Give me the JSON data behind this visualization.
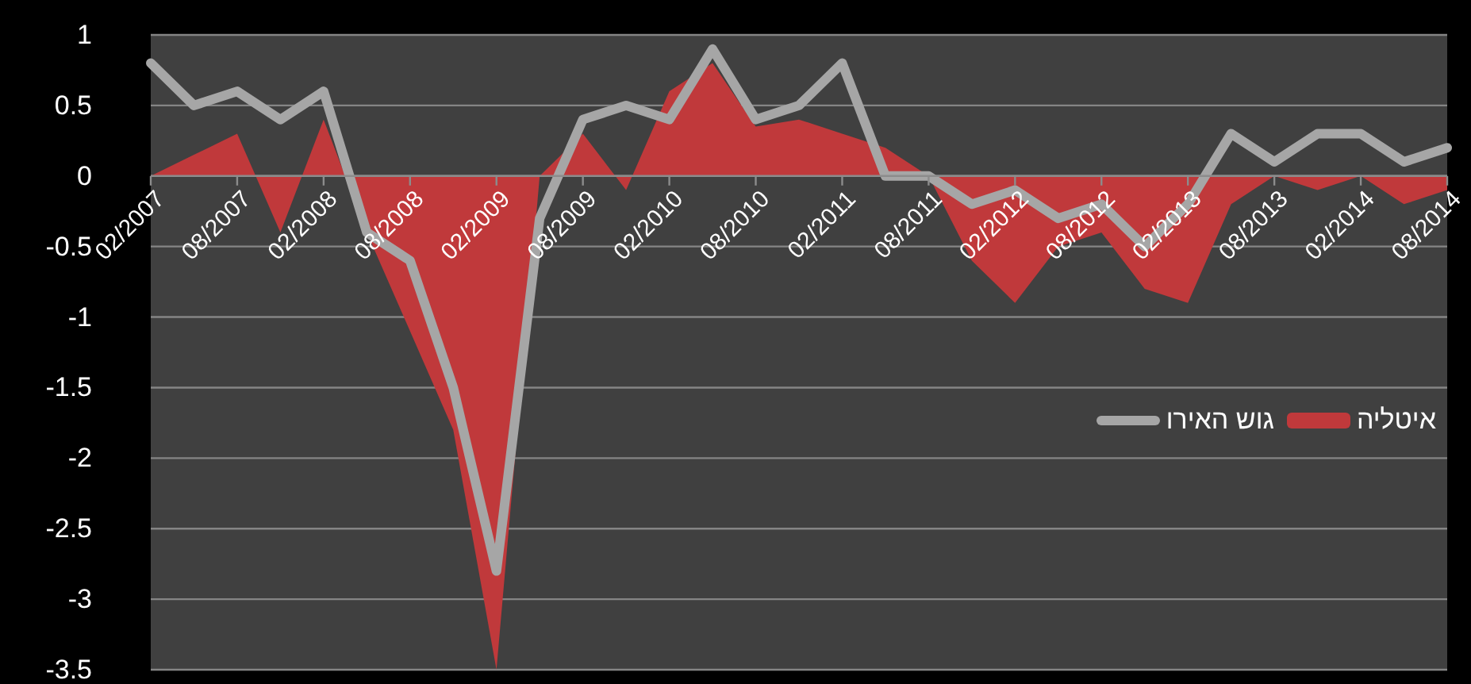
{
  "chart_data": {
    "type": "area",
    "categories": [
      "02/2007",
      null,
      "08/2007",
      null,
      "02/2008",
      null,
      "08/2008",
      null,
      "02/2009",
      null,
      "08/2009",
      null,
      "02/2010",
      null,
      "08/2010",
      null,
      "02/2011",
      null,
      "08/2011",
      null,
      "02/2012",
      null,
      "08/2012",
      null,
      "02/2013",
      null,
      "08/2013",
      null,
      "02/2014",
      null,
      "08/2014"
    ],
    "series": [
      {
        "name": "איטליה",
        "color": "#c0393b",
        "values": [
          0,
          0.15,
          0.3,
          -0.4,
          0.4,
          -0.4,
          -1.1,
          -1.8,
          -3.5,
          0,
          0.3,
          -0.1,
          0.6,
          0.8,
          0.35,
          0.4,
          0.3,
          0.2,
          0,
          -0.6,
          -0.9,
          -0.5,
          -0.4,
          -0.8,
          -0.9,
          -0.2,
          0,
          -0.1,
          0,
          -0.2,
          -0.1
        ]
      },
      {
        "name": "גוש האירו",
        "type": "line",
        "color": "#a6a6a6",
        "values": [
          0.8,
          0.5,
          0.6,
          0.4,
          0.6,
          -0.4,
          -0.6,
          -1.5,
          -2.8,
          -0.3,
          0.4,
          0.5,
          0.4,
          0.9,
          0.4,
          0.5,
          0.8,
          0,
          0,
          -0.2,
          -0.1,
          -0.3,
          -0.2,
          -0.5,
          -0.2,
          0.3,
          0.1,
          0.3,
          0.3,
          0.1,
          0.2
        ]
      }
    ],
    "ylim": [
      -3.5,
      1
    ],
    "yticks": [
      -3.5,
      -3,
      -2.5,
      -2,
      -1.5,
      -1,
      -0.5,
      0,
      0.5,
      1
    ],
    "grid": "y",
    "legend": "right",
    "marker": "none"
  }
}
